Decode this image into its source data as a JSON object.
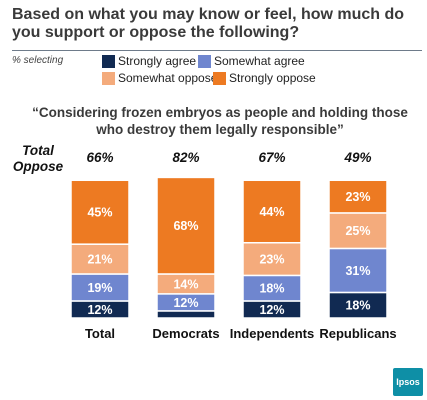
{
  "title": "Based on what you may know or feel, how much do you support or oppose the following?",
  "selecting_label": "% selecting",
  "legend": [
    {
      "label": "Strongly agree",
      "color": "#112a52"
    },
    {
      "label": "Somewhat agree",
      "color": "#6f86cf"
    },
    {
      "label": "Somewhat oppose",
      "color": "#f4ab7c"
    },
    {
      "label": "Strongly oppose",
      "color": "#ed7a22"
    }
  ],
  "quote": "“Considering frozen embryos as people and holding those who destroy them legally responsible”",
  "total_oppose_label": "Total Oppose",
  "logo_text": "Ipsos",
  "chart_data": {
    "type": "bar",
    "stacked": true,
    "categories": [
      "Total",
      "Democrats",
      "Independents",
      "Republicans"
    ],
    "total_oppose": [
      "66%",
      "82%",
      "67%",
      "49%"
    ],
    "series": [
      {
        "name": "Strongly agree",
        "values": [
          12,
          5,
          12,
          18
        ],
        "labels": [
          "12%",
          "",
          "12%",
          "18%"
        ],
        "color": "#112a52"
      },
      {
        "name": "Somewhat agree",
        "values": [
          19,
          12,
          18,
          31
        ],
        "labels": [
          "19%",
          "12%",
          "18%",
          "31%"
        ],
        "color": "#6f86cf"
      },
      {
        "name": "Somewhat oppose",
        "values": [
          21,
          14,
          23,
          25
        ],
        "labels": [
          "21%",
          "14%",
          "23%",
          "25%"
        ],
        "color": "#f4ab7c"
      },
      {
        "name": "Strongly oppose",
        "values": [
          45,
          68,
          44,
          23
        ],
        "labels": [
          "45%",
          "68%",
          "44%",
          "23%"
        ],
        "color": "#ed7a22"
      }
    ],
    "ylim": [
      0,
      100
    ]
  }
}
